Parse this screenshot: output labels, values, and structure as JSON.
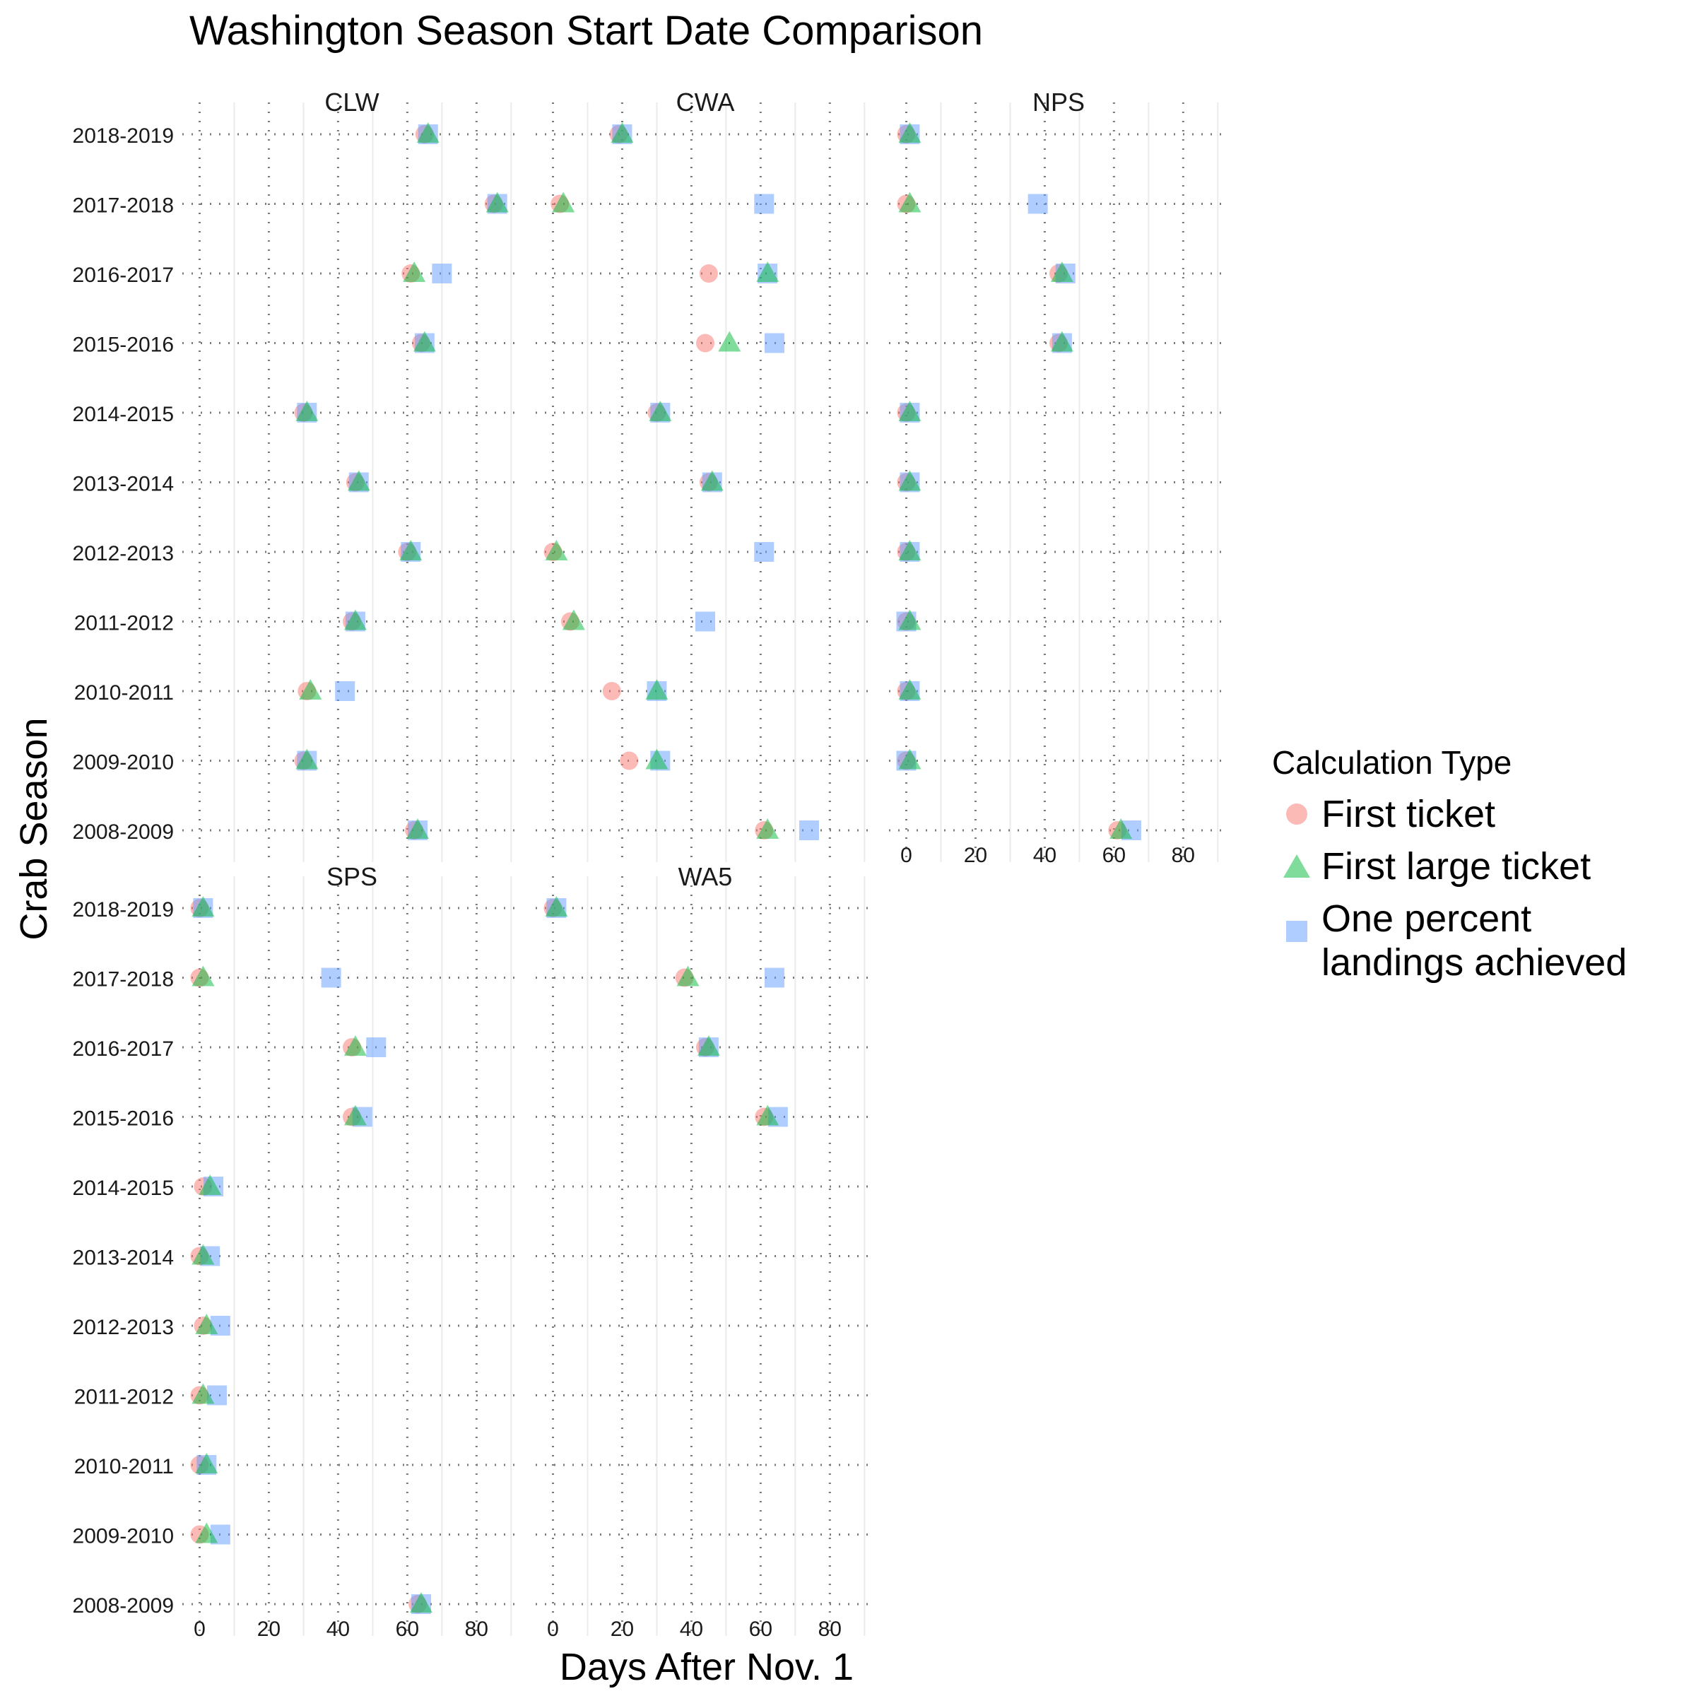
{
  "chart_data": {
    "type": "scatter",
    "title": "Washington Season Start Date Comparison",
    "xlabel": "Days After Nov. 1",
    "ylabel": "Crab Season",
    "xlim": [
      -5,
      93
    ],
    "x_ticks": [
      0,
      20,
      40,
      60,
      80
    ],
    "x_tick_labels": [
      "0",
      "20",
      "40",
      "60",
      "80"
    ],
    "grid": "dotted major gridlines, light minor vertical gridlines",
    "legend": {
      "title": "Calculation Type",
      "position": "right",
      "entries": [
        {
          "label": "First ticket",
          "shape": "circle",
          "color": "#F8766D"
        },
        {
          "label": "First large ticket",
          "shape": "triangle",
          "color": "#00BA38"
        },
        {
          "label": "One percent landings achieved",
          "label_lines": [
            "One percent",
            "landings achieved"
          ],
          "shape": "square",
          "color": "#619CFF"
        }
      ]
    },
    "seasons": [
      "2018-2019",
      "2017-2018",
      "2016-2017",
      "2015-2016",
      "2014-2015",
      "2013-2014",
      "2012-2013",
      "2011-2012",
      "2010-2011",
      "2009-2010",
      "2008-2009"
    ],
    "panels": [
      {
        "name": "CLW",
        "first_ticket": [
          65,
          85,
          61,
          64,
          30,
          45,
          60,
          44,
          31,
          30,
          62
        ],
        "first_large_ticket": [
          66,
          86,
          62,
          65,
          31,
          46,
          61,
          45,
          32,
          31,
          63
        ],
        "one_percent": [
          66,
          86,
          70,
          65,
          31,
          46,
          61,
          45,
          42,
          31,
          63
        ]
      },
      {
        "name": "CWA",
        "first_ticket": [
          19,
          2,
          45,
          44,
          30,
          45,
          0,
          5,
          17,
          22,
          61
        ],
        "first_large_ticket": [
          20,
          3,
          62,
          51,
          31,
          46,
          1,
          6,
          30,
          30,
          62
        ],
        "one_percent": [
          20,
          61,
          62,
          64,
          31,
          46,
          61,
          44,
          30,
          31,
          74
        ]
      },
      {
        "name": "NPS",
        "first_ticket": [
          0,
          0,
          44,
          44,
          0,
          0,
          0,
          0,
          0,
          0,
          61
        ],
        "first_large_ticket": [
          1,
          1,
          45,
          45,
          1,
          1,
          1,
          1,
          1,
          1,
          62
        ],
        "one_percent": [
          1,
          38,
          46,
          45,
          1,
          1,
          1,
          0,
          1,
          0,
          65
        ]
      },
      {
        "name": "SPS",
        "first_ticket": [
          0,
          0,
          44,
          44,
          1,
          0,
          1,
          0,
          0,
          0,
          63
        ],
        "first_large_ticket": [
          1,
          1,
          45,
          45,
          3,
          1,
          2,
          1,
          2,
          2,
          64
        ],
        "one_percent": [
          1,
          38,
          51,
          47,
          4,
          3,
          6,
          5,
          2,
          6,
          64
        ]
      },
      {
        "name": "WA5",
        "first_ticket": [
          0,
          38,
          44,
          61,
          null,
          null,
          null,
          null,
          null,
          null,
          null
        ],
        "first_large_ticket": [
          1,
          39,
          45,
          62,
          null,
          null,
          null,
          null,
          null,
          null,
          null
        ],
        "one_percent": [
          1,
          64,
          45,
          65,
          null,
          null,
          null,
          null,
          null,
          null,
          null
        ]
      }
    ]
  }
}
